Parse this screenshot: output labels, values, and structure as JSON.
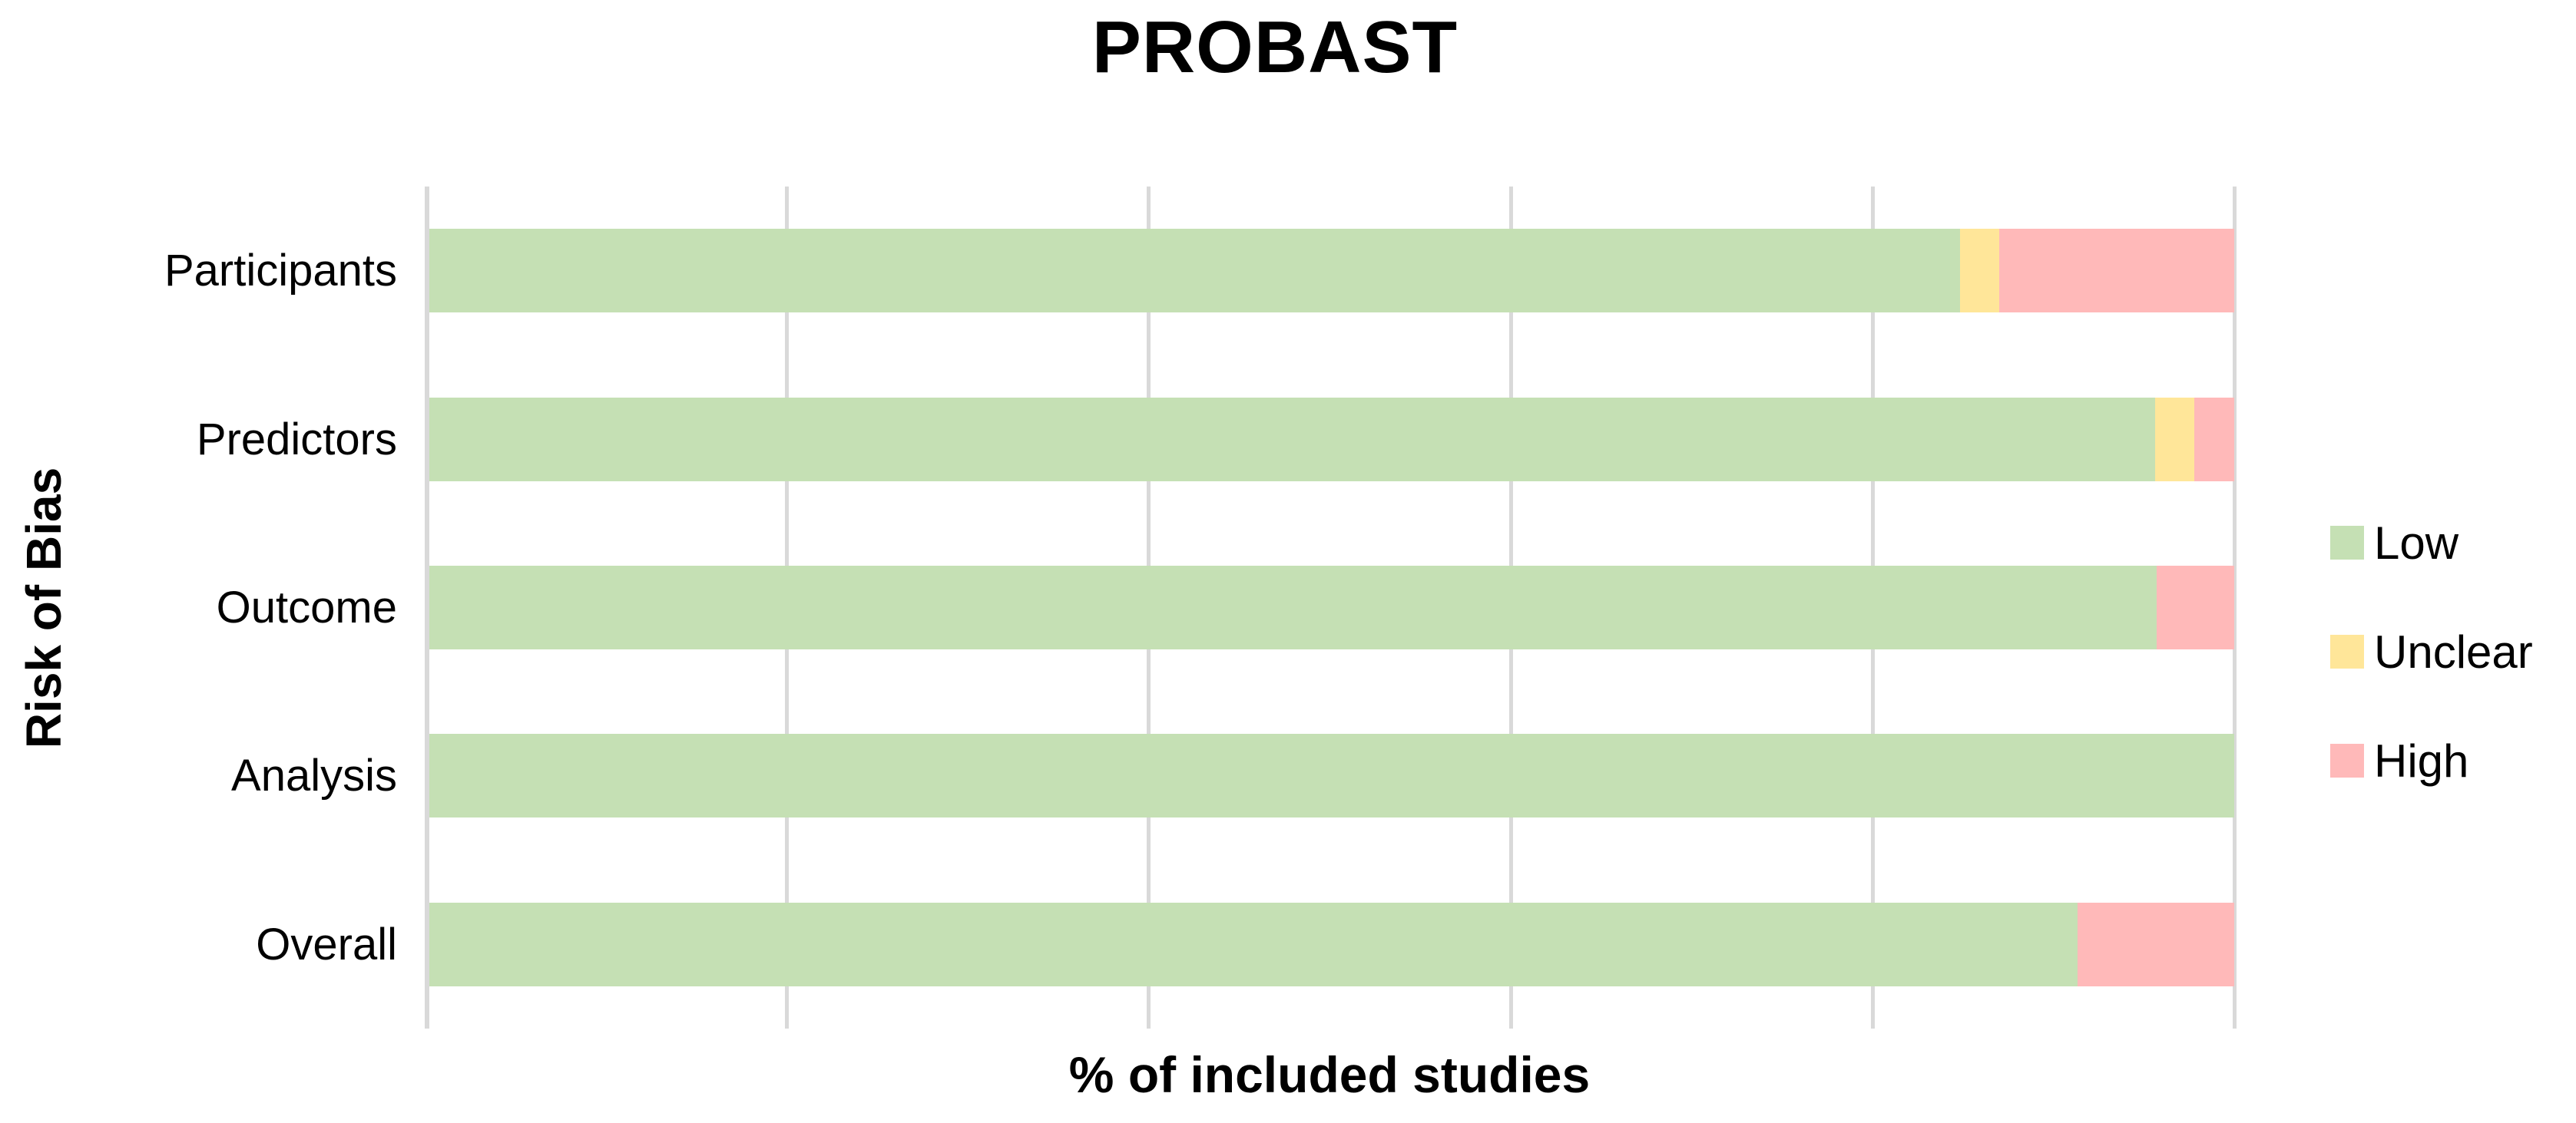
{
  "title": "PROBAST",
  "x_axis_title": "% of included studies",
  "y_axis_title": "Risk of Bias",
  "legend": {
    "position": "right",
    "items": [
      {
        "label": "Low",
        "color": "#C5E0B4"
      },
      {
        "label": "Unclear",
        "color": "#FFE699"
      },
      {
        "label": "High",
        "color": "#FFB9B9"
      }
    ]
  },
  "colors": {
    "low": "#C5E0B4",
    "unclear": "#FFE699",
    "high": "#FFB9B9",
    "gridline": "#D9D9D9",
    "axis_line": "#D9D9D9",
    "background": "#FFFFFF",
    "text": "#000000"
  },
  "chart_data": {
    "type": "bar",
    "orientation": "horizontal",
    "stacked": true,
    "unit": "percent",
    "title": "PROBAST",
    "xlabel": "% of included studies",
    "ylabel": "Risk of Bias",
    "categories": [
      "Participants",
      "Predictors",
      "Outcome",
      "Analysis",
      "Overall"
    ],
    "series": [
      {
        "name": "Low",
        "color": "#C5E0B4",
        "values": [
          84.8,
          95.7,
          95.7,
          100.0,
          91.3
        ]
      },
      {
        "name": "Unclear",
        "color": "#FFE699",
        "values": [
          2.2,
          2.2,
          0.0,
          0.0,
          0.0
        ]
      },
      {
        "name": "High",
        "color": "#FFB9B9",
        "values": [
          13.0,
          2.2,
          4.3,
          0.0,
          8.7
        ]
      }
    ],
    "xlim": [
      0,
      100
    ],
    "gridline_interval": 20,
    "x_tick_labels_visible": false,
    "grid": true,
    "legend_position": "right"
  }
}
